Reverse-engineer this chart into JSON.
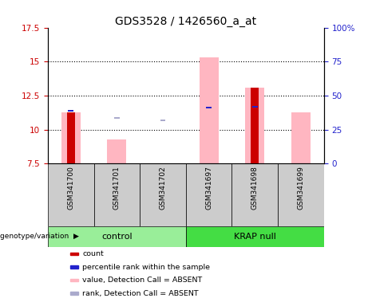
{
  "title": "GDS3528 / 1426560_a_at",
  "samples": [
    "GSM341700",
    "GSM341701",
    "GSM341702",
    "GSM341697",
    "GSM341698",
    "GSM341699"
  ],
  "ylim_left": [
    7.5,
    17.5
  ],
  "ylim_right": [
    0,
    100
  ],
  "yticks_left": [
    7.5,
    10.0,
    12.5,
    15.0,
    17.5
  ],
  "yticks_right": [
    0,
    25,
    50,
    75,
    100
  ],
  "ytick_labels_left": [
    "7.5",
    "10",
    "12.5",
    "15",
    "17.5"
  ],
  "ytick_labels_right": [
    "0",
    "25",
    "50",
    "75",
    "100%"
  ],
  "bar_bottom": 7.5,
  "red_values": [
    11.3,
    7.5,
    7.5,
    7.5,
    13.1,
    7.5
  ],
  "blue_squares_y": [
    11.4,
    null,
    null,
    11.6,
    11.7,
    null
  ],
  "pink_bar_top": [
    11.3,
    9.3,
    7.55,
    15.3,
    13.1,
    11.3
  ],
  "lavender_square_y": [
    null,
    10.85,
    10.7,
    null,
    null,
    null
  ],
  "color_red": "#CC0000",
  "color_blue": "#2222CC",
  "color_pink": "#FFB6C1",
  "color_lavender": "#AAAACC",
  "left_color": "#CC0000",
  "right_color": "#2222CC",
  "sample_bg": "#CCCCCC",
  "control_color": "#99EE99",
  "krap_color": "#44DD44",
  "group_label_text": "genotype/variation",
  "control_label": "control",
  "krap_label": "KRAP null",
  "legend_items": [
    {
      "color": "#CC0000",
      "label": "count"
    },
    {
      "color": "#2222CC",
      "label": "percentile rank within the sample"
    },
    {
      "color": "#FFB6C1",
      "label": "value, Detection Call = ABSENT"
    },
    {
      "color": "#AAAACC",
      "label": "rank, Detection Call = ABSENT"
    }
  ]
}
